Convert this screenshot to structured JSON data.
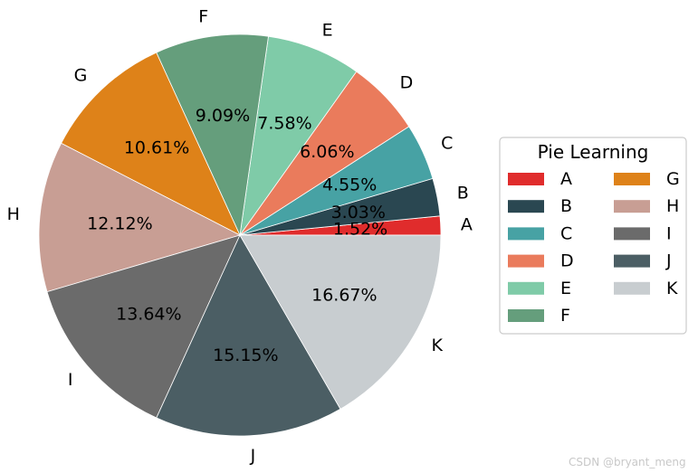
{
  "chart_data": {
    "type": "pie",
    "categories": [
      "A",
      "B",
      "C",
      "D",
      "E",
      "F",
      "G",
      "H",
      "I",
      "J",
      "K"
    ],
    "values": [
      1.52,
      3.03,
      4.55,
      6.06,
      7.58,
      9.09,
      10.61,
      12.12,
      13.64,
      15.15,
      16.67
    ],
    "value_labels": [
      "1.52%",
      "3.03%",
      "4.55%",
      "6.06%",
      "7.58%",
      "9.09%",
      "10.61%",
      "12.12%",
      "13.64%",
      "15.15%",
      "16.67%"
    ],
    "colors": [
      "#e02c2c",
      "#2a4751",
      "#47a2a4",
      "#ea7b5c",
      "#7fcba8",
      "#659e7c",
      "#de8219",
      "#c89e94",
      "#6b6b6b",
      "#4b5e64",
      "#c8cdd0"
    ],
    "start_angle_deg": 0,
    "direction": "counterclockwise",
    "legend": {
      "title": "Pie Learning",
      "placement": "right",
      "columns": 2,
      "entries": [
        "A",
        "B",
        "C",
        "D",
        "E",
        "F",
        "G",
        "H",
        "I",
        "J",
        "K"
      ]
    }
  },
  "watermark": "CSDN @bryant_meng"
}
